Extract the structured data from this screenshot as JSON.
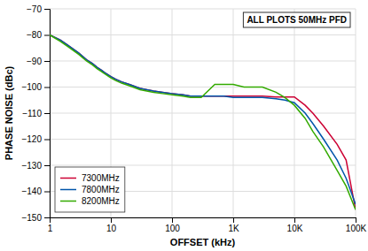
{
  "chart_data": {
    "type": "line",
    "xlabel": "OFFSET (kHz)",
    "ylabel": "PHASE NOISE (dBc)",
    "annotations": [
      "ALL PLOTS 50MHz PFD"
    ],
    "log": "x",
    "grid": true,
    "legend": "lower left",
    "xlim": [
      1,
      100000
    ],
    "ylim": [
      -150,
      -70
    ],
    "xticks": [
      1,
      10,
      100,
      {
        "value": 1000,
        "label": "1K"
      },
      {
        "value": 10000,
        "label": "10K"
      },
      {
        "value": 100000,
        "label": "100K"
      }
    ],
    "yticks": [
      {
        "value": -150,
        "label": "−150"
      },
      {
        "value": -140,
        "label": "−140"
      },
      {
        "value": -130,
        "label": "−130"
      },
      {
        "value": -120,
        "label": "−120"
      },
      {
        "value": -110,
        "label": "−110"
      },
      {
        "value": -100,
        "label": "−100"
      },
      {
        "value": -90,
        "label": "−90"
      },
      {
        "value": -80,
        "label": "−80"
      },
      {
        "value": -70,
        "label": "−70"
      }
    ],
    "x": [
      1,
      1.5,
      2,
      3,
      4,
      5,
      6,
      7,
      8,
      10,
      12,
      15,
      20,
      30,
      50,
      70,
      100,
      150,
      200,
      300,
      500,
      700,
      1000,
      1500,
      2000,
      3000,
      5000,
      7000,
      10000,
      15000,
      20000,
      30000,
      50000,
      70000,
      100000
    ],
    "series": [
      {
        "name": "7300MHz",
        "color": "#cc0033",
        "values": [
          -80,
          -82,
          -84,
          -87,
          -89.5,
          -91,
          -92.5,
          -93.5,
          -94.5,
          -96,
          -97,
          -98,
          -99,
          -100.5,
          -101.5,
          -102,
          -102.5,
          -103,
          -103.5,
          -103.5,
          -103.5,
          -103.5,
          -103.5,
          -103.5,
          -103.5,
          -103.5,
          -103.8,
          -103.8,
          -103.8,
          -107,
          -110,
          -115,
          -122,
          -128,
          -147
        ]
      },
      {
        "name": "7800MHz",
        "color": "#0055aa",
        "values": [
          -80,
          -82,
          -84,
          -87,
          -89.5,
          -91,
          -92.5,
          -93.5,
          -94.5,
          -96,
          -97,
          -98,
          -99,
          -100.5,
          -101.5,
          -102,
          -102.5,
          -103,
          -103.5,
          -103.5,
          -103.5,
          -103.5,
          -104,
          -104,
          -104,
          -104,
          -104.5,
          -105,
          -106,
          -110,
          -114,
          -120,
          -128,
          -135,
          -145
        ]
      },
      {
        "name": "8200MHz",
        "color": "#33aa00",
        "values": [
          -80,
          -82.5,
          -84.5,
          -87.5,
          -90,
          -91.5,
          -93,
          -94,
          -95,
          -96.5,
          -97.5,
          -98.5,
          -99.5,
          -101,
          -102,
          -102.5,
          -103,
          -103.5,
          -104,
          -104,
          -99,
          -99,
          -99,
          -100,
          -100,
          -100,
          -102,
          -104,
          -107,
          -112,
          -117,
          -123,
          -132,
          -138,
          -147
        ]
      }
    ]
  }
}
